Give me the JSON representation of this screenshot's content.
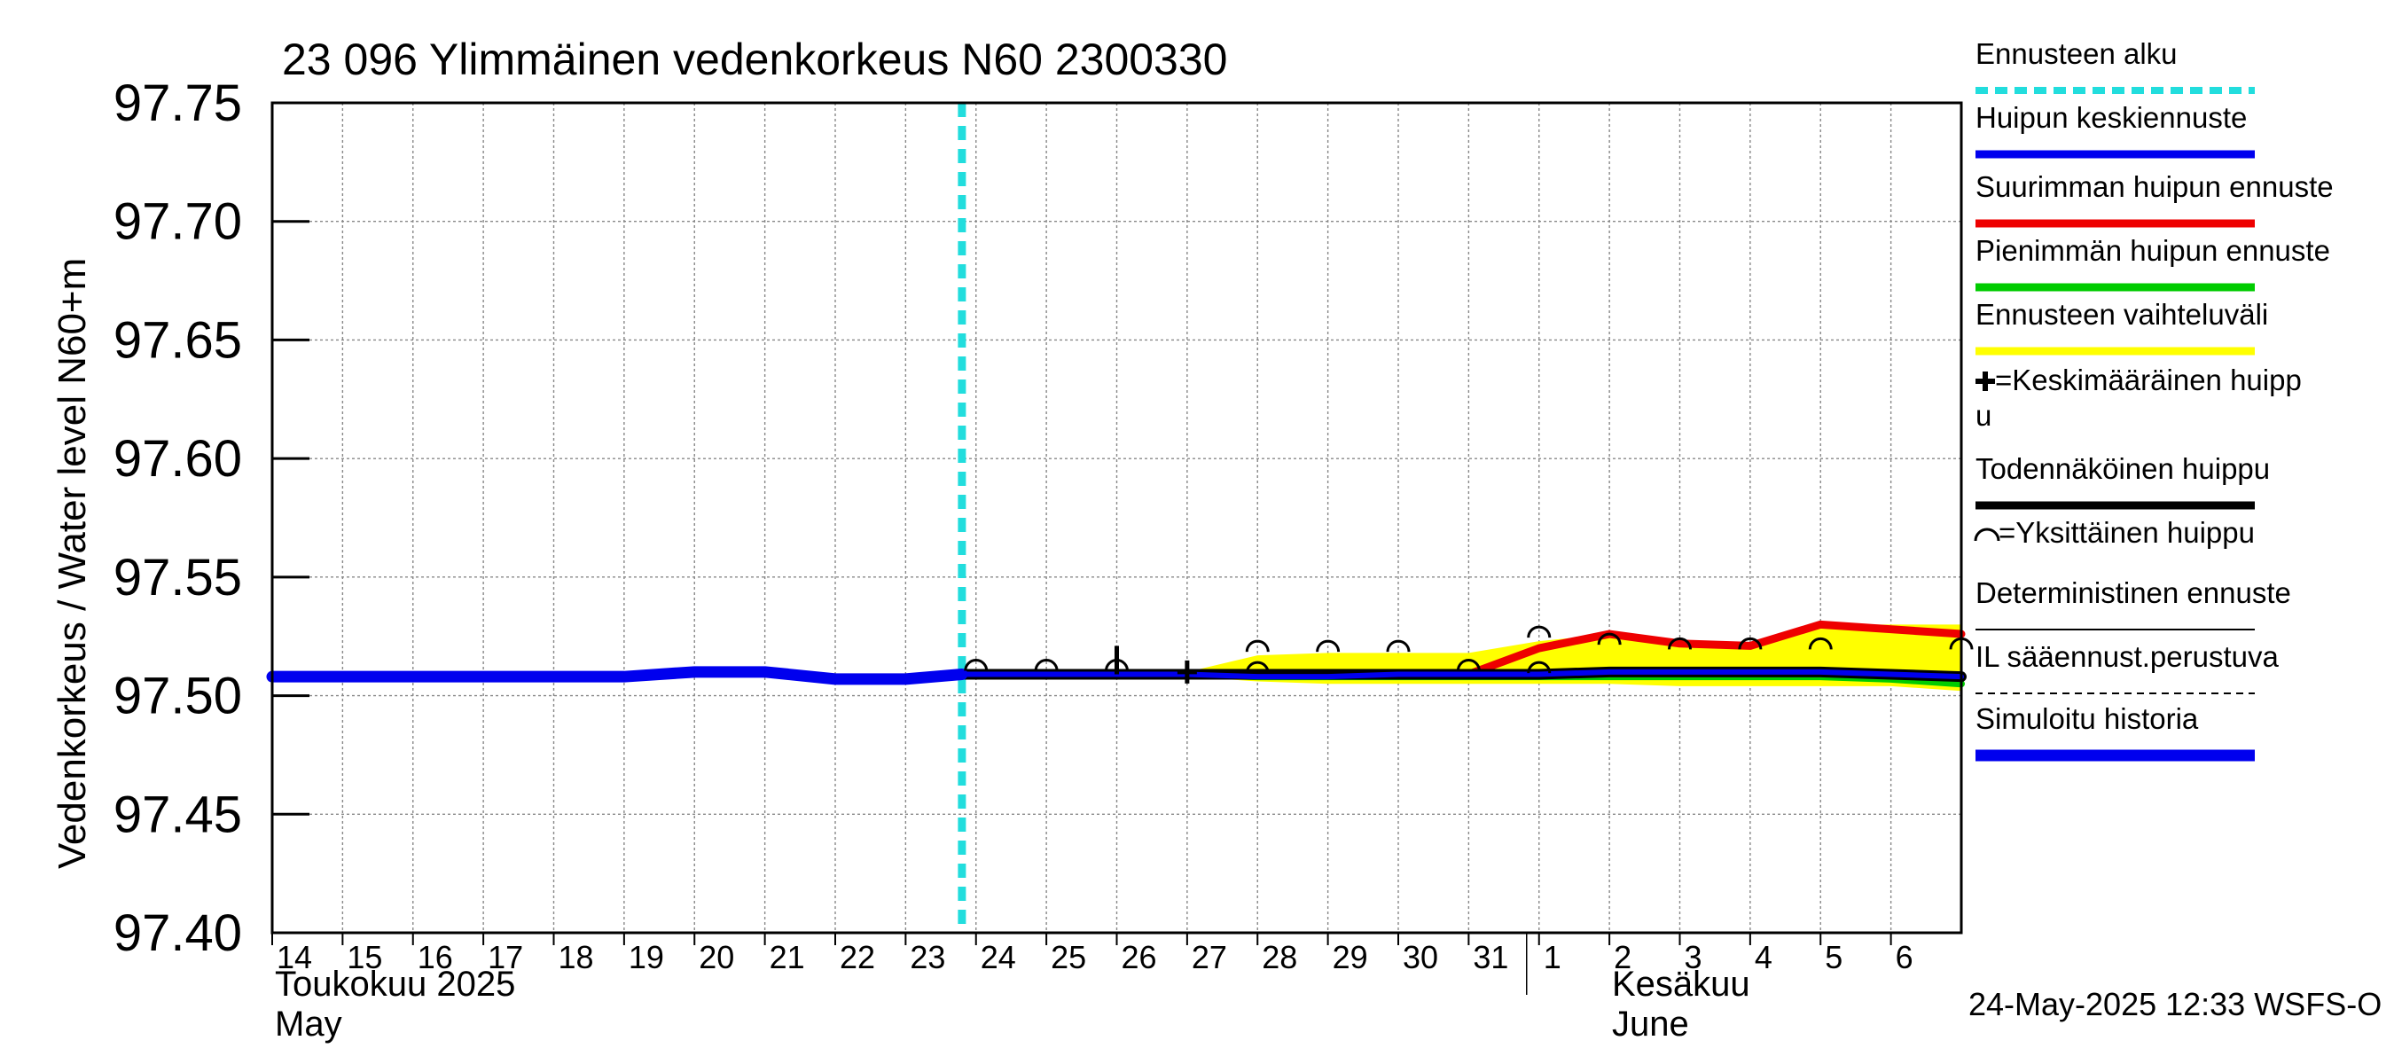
{
  "chart_data": {
    "type": "line",
    "title": "23 096 Ylimmäinen vedenkorkeus N60 2300330",
    "ylabel": "Vedenkorkeus / Water level   N60+m",
    "ylim": [
      97.4,
      97.75
    ],
    "yticks": [
      "97.40",
      "97.45",
      "97.50",
      "97.55",
      "97.60",
      "97.65",
      "97.70",
      "97.75"
    ],
    "xlim": [
      14,
      38
    ],
    "day_labels": [
      "14",
      "15",
      "16",
      "17",
      "18",
      "19",
      "20",
      "21",
      "22",
      "23",
      "24",
      "25",
      "26",
      "27",
      "28",
      "29",
      "30",
      "31",
      "1",
      "2",
      "3",
      "4",
      "5",
      "6"
    ],
    "month_labels": {
      "may_fi": "Toukokuu  2025",
      "may_en": "May",
      "june_fi": "Kesäkuu",
      "june_en": "June"
    },
    "forecast_start": 23.8,
    "footer": "24-May-2025 12:33 WSFS-O",
    "colors": {
      "forecast_start": "#22dddd",
      "mean": "#0000ee",
      "max": "#ee0000",
      "min": "#00cc00",
      "band": "#ffff00",
      "probable": "#000000",
      "history": "#0000ee"
    },
    "series": [
      {
        "name": "Simuloitu historia",
        "x": [
          14,
          15,
          16,
          17,
          18,
          19,
          20,
          21,
          22,
          23,
          23.8
        ],
        "values": [
          97.508,
          97.508,
          97.508,
          97.508,
          97.508,
          97.508,
          97.51,
          97.51,
          97.507,
          97.507,
          97.509
        ]
      },
      {
        "name": "Huipun keskiennuste",
        "x": [
          23.8,
          25,
          26,
          27,
          28,
          29,
          30,
          31,
          32,
          33,
          34,
          35,
          36,
          37,
          38
        ],
        "values": [
          97.509,
          97.509,
          97.509,
          97.509,
          97.508,
          97.508,
          97.509,
          97.509,
          97.509,
          97.51,
          97.51,
          97.51,
          97.51,
          97.509,
          97.508
        ]
      },
      {
        "name": "Suurimman huipun ennuste",
        "x": [
          23.8,
          25,
          26,
          27,
          28,
          29,
          30,
          31,
          32,
          33,
          34,
          35,
          36,
          37,
          38
        ],
        "values": [
          97.509,
          97.509,
          97.509,
          97.509,
          97.509,
          97.509,
          97.509,
          97.509,
          97.52,
          97.526,
          97.522,
          97.521,
          97.53,
          97.528,
          97.526
        ]
      },
      {
        "name": "Pienimmän huipun ennuste",
        "x": [
          23.8,
          25,
          26,
          27,
          28,
          29,
          30,
          31,
          32,
          33,
          34,
          35,
          36,
          37,
          38
        ],
        "values": [
          97.509,
          97.509,
          97.509,
          97.509,
          97.508,
          97.508,
          97.508,
          97.508,
          97.508,
          97.508,
          97.508,
          97.508,
          97.508,
          97.507,
          97.505
        ]
      },
      {
        "name": "Todennäköinen huippu",
        "x": [
          23.8,
          25,
          26,
          27,
          28,
          29,
          30,
          31,
          32,
          33,
          34,
          35,
          36,
          37,
          38
        ],
        "values": [
          97.509,
          97.509,
          97.509,
          97.509,
          97.509,
          97.509,
          97.509,
          97.509,
          97.509,
          97.51,
          97.51,
          97.51,
          97.51,
          97.509,
          97.508
        ]
      }
    ],
    "band": {
      "name": "Ennusteen vaihteluväli",
      "x": [
        23.8,
        25,
        26,
        27,
        28,
        29,
        30,
        31,
        32,
        33,
        34,
        35,
        36,
        37,
        38
      ],
      "upper": [
        97.509,
        97.509,
        97.51,
        97.51,
        97.517,
        97.518,
        97.518,
        97.518,
        97.523,
        97.526,
        97.522,
        97.521,
        97.53,
        97.53,
        97.53
      ],
      "lower": [
        97.509,
        97.509,
        97.509,
        97.508,
        97.506,
        97.505,
        97.505,
        97.505,
        97.505,
        97.505,
        97.504,
        97.504,
        97.504,
        97.504,
        97.502
      ]
    },
    "single_peaks_upper": [
      {
        "x": 24,
        "y": 97.509
      },
      {
        "x": 25,
        "y": 97.509
      },
      {
        "x": 26,
        "y": 97.509
      },
      {
        "x": 28,
        "y": 97.517
      },
      {
        "x": 29,
        "y": 97.517
      },
      {
        "x": 30,
        "y": 97.517
      },
      {
        "x": 31,
        "y": 97.509
      },
      {
        "x": 32,
        "y": 97.523
      },
      {
        "x": 33,
        "y": 97.52
      },
      {
        "x": 34,
        "y": 97.518
      },
      {
        "x": 35,
        "y": 97.518
      },
      {
        "x": 36,
        "y": 97.518
      },
      {
        "x": 38,
        "y": 97.518
      }
    ],
    "single_peaks_lower": [
      {
        "x": 28,
        "y": 97.508
      },
      {
        "x": 32,
        "y": 97.508
      }
    ],
    "mean_peak": {
      "x": 27,
      "y": 97.51
    },
    "probable_peak_marker": {
      "x": 26,
      "y": 97.509,
      "height": 0.012
    },
    "legend": [
      {
        "label": "Ennusteen alku",
        "style": "dashed-cyan"
      },
      {
        "label": "Huipun keskiennuste",
        "style": "blue"
      },
      {
        "label": "Suurimman huipun ennuste",
        "style": "red"
      },
      {
        "label": "Pienimmän huipun ennuste",
        "style": "green"
      },
      {
        "label": "Ennusteen vaihteluväli",
        "style": "yellow"
      },
      {
        "label": "=Keskimääräinen huipp",
        "label2": "u",
        "style": "plus"
      },
      {
        "label": "Todennäköinen huippu",
        "style": "black"
      },
      {
        "label": "=Yksittäinen huippu",
        "style": "arc"
      },
      {
        "label": "Deterministinen ennuste",
        "style": "thin-black"
      },
      {
        "label": "IL sääennust.perustuva",
        "style": "dashed-black"
      },
      {
        "label": "Simuloitu historia",
        "style": "thick-blue"
      }
    ]
  }
}
